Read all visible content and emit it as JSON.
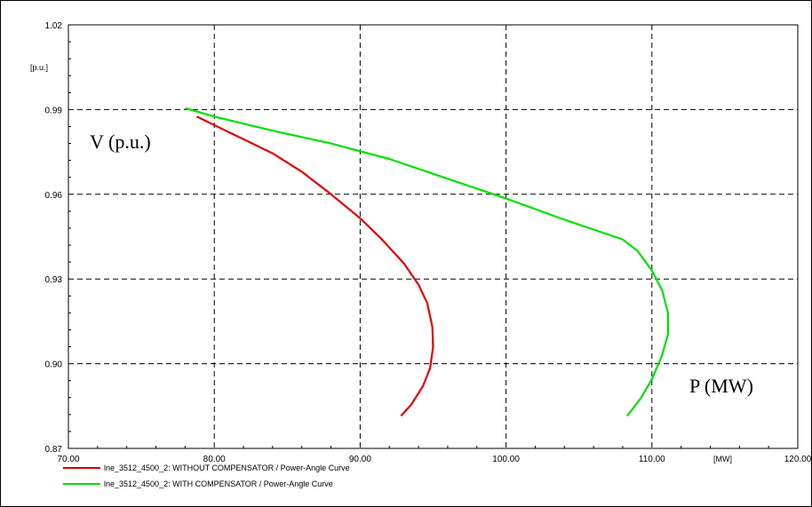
{
  "chart_data": {
    "type": "line",
    "xlim": [
      70,
      120
    ],
    "ylim": [
      0.87,
      1.02
    ],
    "x_ticks": [
      "70.00",
      "80.00",
      "90.00",
      "100.00",
      "110.00",
      "120.00"
    ],
    "y_ticks": [
      "0.87",
      "0.90",
      "0.93",
      "0.96",
      "0.99",
      "1.02"
    ],
    "x_unit": "[MW]",
    "y_unit": "[p.u.]",
    "grid": true,
    "annotations": [
      "V (p.u.)",
      "P (MW)"
    ],
    "legend_position": "bottom-left",
    "series": [
      {
        "name": "lne_3512_4500_2: WITHOUT COMPENSATOR / Power-Angle Curve",
        "color": "#e00000",
        "points": [
          [
            78.8,
            0.9875
          ],
          [
            80.0,
            0.9845
          ],
          [
            82.0,
            0.9795
          ],
          [
            84.0,
            0.9745
          ],
          [
            86.0,
            0.968
          ],
          [
            88.0,
            0.96
          ],
          [
            90.0,
            0.9515
          ],
          [
            91.5,
            0.944
          ],
          [
            93.0,
            0.9355
          ],
          [
            94.0,
            0.928
          ],
          [
            94.6,
            0.9215
          ],
          [
            94.95,
            0.913
          ],
          [
            95.0,
            0.906
          ],
          [
            94.8,
            0.8985
          ],
          [
            94.3,
            0.892
          ],
          [
            93.5,
            0.8855
          ],
          [
            92.8,
            0.8815
          ]
        ]
      },
      {
        "name": "lne_3512_4500_2: WITH COMPENSATOR / Power-Angle Curve",
        "color": "#00e000",
        "points": [
          [
            78.0,
            0.9905
          ],
          [
            80.0,
            0.9875
          ],
          [
            84.0,
            0.9825
          ],
          [
            88.0,
            0.978
          ],
          [
            92.0,
            0.9725
          ],
          [
            96.0,
            0.9655
          ],
          [
            100.0,
            0.9585
          ],
          [
            104.0,
            0.951
          ],
          [
            106.0,
            0.9475
          ],
          [
            108.0,
            0.944
          ],
          [
            109.0,
            0.94
          ],
          [
            110.0,
            0.933
          ],
          [
            110.7,
            0.926
          ],
          [
            111.1,
            0.918
          ],
          [
            111.1,
            0.9105
          ],
          [
            110.7,
            0.903
          ],
          [
            110.0,
            0.8945
          ],
          [
            109.2,
            0.8875
          ],
          [
            108.3,
            0.8815
          ]
        ]
      }
    ]
  }
}
